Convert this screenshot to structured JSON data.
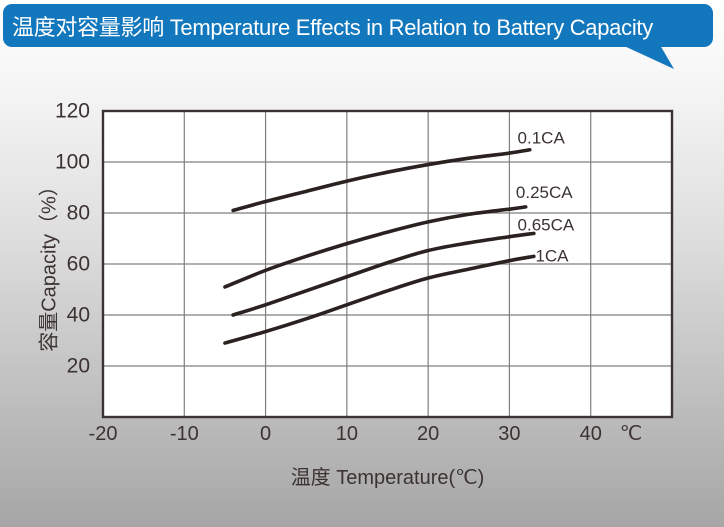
{
  "banner": {
    "title": "温度对容量影响 Temperature Effects in Relation to Battery Capacity",
    "bg_color": "#1277BD",
    "text_color": "#FFFFFF"
  },
  "chart_data": {
    "type": "line",
    "title": "温度对容量影响 Temperature Effects in Relation to Battery Capacity",
    "xlabel": "温度  Temperature(℃)",
    "ylabel": "容量Capacity（%）",
    "x_unit": "℃",
    "xlim": [
      -20,
      50
    ],
    "ylim": [
      0,
      120
    ],
    "x_ticks": [
      -20,
      -10,
      0,
      10,
      20,
      30,
      40
    ],
    "y_ticks": [
      20,
      40,
      60,
      80,
      100,
      120
    ],
    "grid": true,
    "legend_position": "inline-right-of-curves",
    "axis_color": "#3B3331",
    "grid_color": "#7F7F7F",
    "line_color": "#2B2120",
    "text_color": "#3B3331",
    "plot_bg": "#FFFFFF",
    "series": [
      {
        "name": "0.1CA",
        "label_at": [
          31,
          109.5
        ],
        "points": [
          [
            -4,
            81
          ],
          [
            0,
            84.5
          ],
          [
            5,
            88.5
          ],
          [
            10,
            92.5
          ],
          [
            15,
            96
          ],
          [
            20,
            99
          ],
          [
            25,
            101.5
          ],
          [
            30,
            103.5
          ],
          [
            32.5,
            104.8
          ]
        ]
      },
      {
        "name": "0.25CA",
        "label_at": [
          30.8,
          88
        ],
        "points": [
          [
            -5,
            51
          ],
          [
            0,
            57.5
          ],
          [
            5,
            63
          ],
          [
            10,
            68
          ],
          [
            15,
            72.5
          ],
          [
            20,
            76.5
          ],
          [
            25,
            79.5
          ],
          [
            30,
            81.5
          ],
          [
            32,
            82.4
          ]
        ]
      },
      {
        "name": "0.65CA",
        "label_at": [
          31,
          75.3
        ],
        "points": [
          [
            -4,
            40
          ],
          [
            0,
            44
          ],
          [
            5,
            49.5
          ],
          [
            10,
            55
          ],
          [
            15,
            60.5
          ],
          [
            20,
            65.3
          ],
          [
            25,
            68.3
          ],
          [
            30,
            70.7
          ],
          [
            33,
            72
          ]
        ]
      },
      {
        "name": "1CA",
        "label_at": [
          33.2,
          63.2
        ],
        "points": [
          [
            -5,
            29
          ],
          [
            0,
            33.5
          ],
          [
            5,
            38.5
          ],
          [
            10,
            44
          ],
          [
            15,
            49.5
          ],
          [
            20,
            54.5
          ],
          [
            25,
            58
          ],
          [
            30,
            61.3
          ],
          [
            33,
            63
          ]
        ]
      }
    ]
  }
}
